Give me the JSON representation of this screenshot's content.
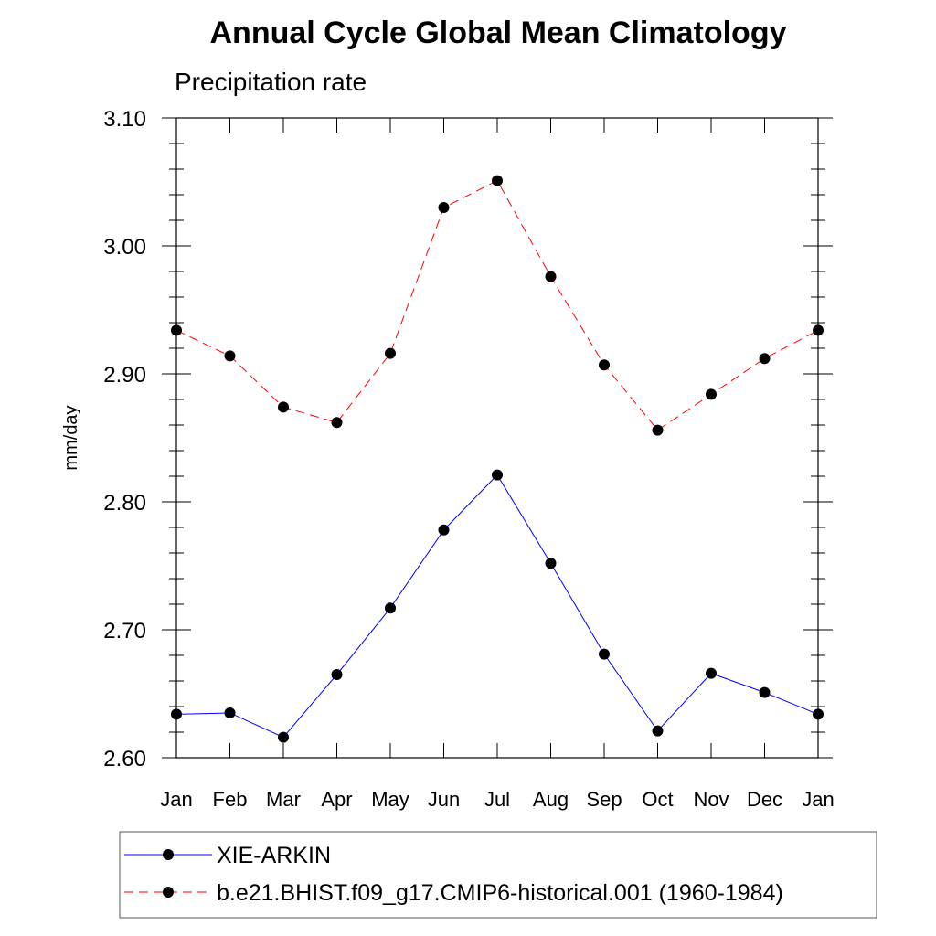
{
  "chart_data": {
    "type": "line",
    "title": "Annual Cycle Global Mean Climatology",
    "subtitle": "Precipitation rate",
    "ylabel": "mm/day",
    "xlabel": "",
    "categories": [
      "Jan",
      "Feb",
      "Mar",
      "Apr",
      "May",
      "Jun",
      "Jul",
      "Aug",
      "Sep",
      "Oct",
      "Nov",
      "Dec",
      "Jan"
    ],
    "ylim": [
      2.6,
      3.1
    ],
    "yticks": [
      "2.60",
      "2.70",
      "2.80",
      "2.90",
      "3.00",
      "3.10"
    ],
    "y_minor_step": 0.02,
    "grid": false,
    "legend_position": "bottom",
    "series": [
      {
        "name": "XIE-ARKIN",
        "color": "#0000ff",
        "line_style": "solid",
        "marker": "filled-circle",
        "values": [
          2.634,
          2.635,
          2.616,
          2.665,
          2.717,
          2.778,
          2.821,
          2.752,
          2.681,
          2.621,
          2.666,
          2.651,
          2.634
        ]
      },
      {
        "name": "b.e21.BHIST.f09_g17.CMIP6-historical.001 (1960-1984)",
        "color": "#ff0000",
        "line_style": "dashed",
        "marker": "filled-circle",
        "values": [
          2.934,
          2.914,
          2.874,
          2.862,
          2.916,
          3.03,
          3.051,
          2.976,
          2.907,
          2.856,
          2.884,
          2.912,
          2.934
        ]
      }
    ]
  }
}
